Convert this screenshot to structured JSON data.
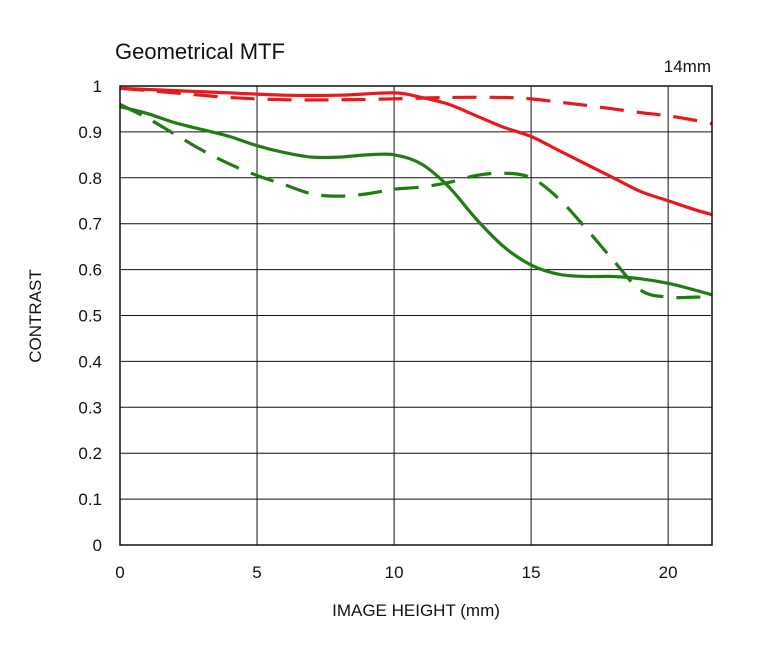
{
  "chart_data": {
    "type": "line",
    "title": "Geometrical MTF",
    "focal_length": "14mm",
    "xlabel": "IMAGE HEIGHT (mm)",
    "ylabel": "CONTRAST",
    "xlim": [
      0,
      21.6
    ],
    "ylim": [
      0,
      1
    ],
    "xticks": [
      "0",
      "5",
      "10",
      "15",
      "20"
    ],
    "yticks": [
      "0",
      "0.1",
      "0.2",
      "0.3",
      "0.4",
      "0.5",
      "0.6",
      "0.7",
      "0.8",
      "0.9",
      "1"
    ],
    "grid": true,
    "series": [
      {
        "color": "#e8191b",
        "dash": "solid",
        "x": [
          0,
          2,
          4,
          6,
          8,
          10,
          11,
          12,
          13,
          14,
          15,
          16,
          17,
          18,
          19,
          20,
          21,
          21.6
        ],
        "y": [
          0.995,
          0.99,
          0.985,
          0.98,
          0.98,
          0.985,
          0.975,
          0.96,
          0.935,
          0.91,
          0.89,
          0.86,
          0.83,
          0.8,
          0.77,
          0.75,
          0.73,
          0.72
        ]
      },
      {
        "color": "#e8191b",
        "dash": "dashed",
        "x": [
          0,
          2,
          4,
          6,
          8,
          10,
          12,
          14,
          15,
          16,
          17,
          18,
          19,
          20,
          21,
          21.6
        ],
        "y": [
          0.995,
          0.985,
          0.975,
          0.97,
          0.97,
          0.972,
          0.975,
          0.975,
          0.972,
          0.965,
          0.958,
          0.95,
          0.942,
          0.935,
          0.925,
          0.918
        ]
      },
      {
        "color": "#1f7d12",
        "dash": "solid",
        "x": [
          0,
          1,
          2,
          3,
          4,
          5,
          6,
          7,
          8,
          9,
          10,
          11,
          12,
          13,
          14,
          15,
          16,
          17,
          18,
          19,
          20,
          21,
          21.6
        ],
        "y": [
          0.955,
          0.94,
          0.92,
          0.905,
          0.89,
          0.87,
          0.855,
          0.845,
          0.845,
          0.85,
          0.85,
          0.83,
          0.78,
          0.71,
          0.65,
          0.61,
          0.59,
          0.585,
          0.585,
          0.58,
          0.57,
          0.555,
          0.545
        ]
      },
      {
        "color": "#1f7d12",
        "dash": "dashed",
        "x": [
          0,
          1,
          2,
          3,
          4,
          5,
          6,
          7,
          8,
          9,
          10,
          11,
          12,
          13,
          14,
          15,
          16,
          17,
          18,
          19,
          20,
          21,
          21.6
        ],
        "y": [
          0.96,
          0.93,
          0.895,
          0.86,
          0.83,
          0.805,
          0.785,
          0.765,
          0.76,
          0.765,
          0.775,
          0.78,
          0.79,
          0.805,
          0.81,
          0.8,
          0.755,
          0.69,
          0.62,
          0.555,
          0.54,
          0.54,
          0.54
        ]
      }
    ]
  }
}
